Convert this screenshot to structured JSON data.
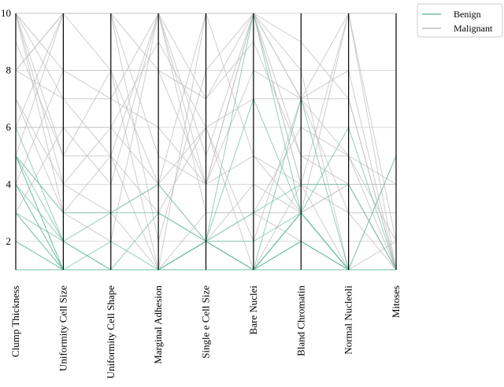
{
  "chart_data": {
    "type": "parallel",
    "categories": [
      "Clump Thickness",
      "Uniformity Cell Size",
      "Uniformity Cell Shape",
      "Marginal Adhesion",
      "Single e Cell Size",
      "Bare Nuclei",
      "Bland Chromatin",
      "Normal Nucleoli",
      "Mitoses"
    ],
    "ylim": [
      1,
      10
    ],
    "yticks": [
      2,
      4,
      6,
      8,
      10
    ],
    "grid": true,
    "legend": "outside-upper-right",
    "series": [
      {
        "name": "Benign",
        "color": "#6fbfa4",
        "values": [
          [
            5,
            1,
            1,
            1,
            2,
            1,
            3,
            1,
            1
          ],
          [
            3,
            1,
            1,
            1,
            2,
            2,
            3,
            1,
            1
          ],
          [
            4,
            1,
            1,
            3,
            2,
            1,
            3,
            1,
            1
          ],
          [
            1,
            1,
            1,
            1,
            2,
            10,
            3,
            1,
            1
          ],
          [
            2,
            1,
            2,
            1,
            2,
            1,
            3,
            1,
            1
          ],
          [
            5,
            3,
            3,
            3,
            2,
            3,
            4,
            4,
            1
          ],
          [
            1,
            1,
            1,
            1,
            1,
            1,
            3,
            1,
            1
          ],
          [
            4,
            2,
            1,
            1,
            2,
            1,
            2,
            1,
            1
          ],
          [
            3,
            2,
            1,
            1,
            1,
            1,
            2,
            1,
            1
          ],
          [
            5,
            1,
            1,
            1,
            2,
            1,
            2,
            1,
            1
          ],
          [
            2,
            1,
            1,
            1,
            2,
            1,
            1,
            1,
            5
          ],
          [
            1,
            1,
            1,
            1,
            2,
            1,
            3,
            1,
            1
          ],
          [
            4,
            1,
            1,
            1,
            2,
            1,
            2,
            1,
            1
          ],
          [
            6,
            2,
            1,
            1,
            1,
            1,
            7,
            1,
            1
          ],
          [
            3,
            1,
            1,
            1,
            2,
            1,
            1,
            1,
            1
          ],
          [
            5,
            2,
            3,
            4,
            2,
            7,
            3,
            6,
            1
          ]
        ]
      },
      {
        "name": "Malignant",
        "color": "#bdbdbd",
        "values": [
          [
            8,
            10,
            10,
            8,
            7,
            10,
            9,
            7,
            1
          ],
          [
            10,
            7,
            7,
            6,
            4,
            10,
            4,
            1,
            2
          ],
          [
            7,
            4,
            6,
            4,
            6,
            1,
            4,
            3,
            1
          ],
          [
            10,
            10,
            10,
            10,
            10,
            10,
            4,
            10,
            10
          ],
          [
            7,
            3,
            2,
            10,
            5,
            10,
            5,
            4,
            4
          ],
          [
            10,
            5,
            5,
            3,
            6,
            7,
            7,
            10,
            1
          ],
          [
            5,
            10,
            10,
            5,
            4,
            5,
            4,
            4,
            1
          ],
          [
            8,
            7,
            5,
            10,
            7,
            9,
            5,
            5,
            4
          ],
          [
            10,
            4,
            3,
            1,
            3,
            3,
            6,
            5,
            2
          ],
          [
            6,
            6,
            6,
            9,
            6,
            2,
            7,
            8,
            1
          ],
          [
            9,
            5,
            8,
            1,
            2,
            3,
            2,
            1,
            5
          ],
          [
            10,
            8,
            8,
            4,
            10,
            10,
            8,
            1,
            1
          ],
          [
            4,
            8,
            7,
            10,
            4,
            10,
            7,
            5,
            1
          ],
          [
            5,
            3,
            3,
            4,
            2,
            4,
            3,
            4,
            1
          ],
          [
            8,
            10,
            8,
            8,
            4,
            8,
            7,
            7,
            1
          ],
          [
            10,
            3,
            5,
            1,
            10,
            5,
            3,
            10,
            2
          ],
          [
            3,
            6,
            4,
            10,
            3,
            3,
            3,
            4,
            1
          ],
          [
            6,
            10,
            10,
            2,
            8,
            10,
            7,
            3,
            3
          ]
        ]
      }
    ]
  }
}
